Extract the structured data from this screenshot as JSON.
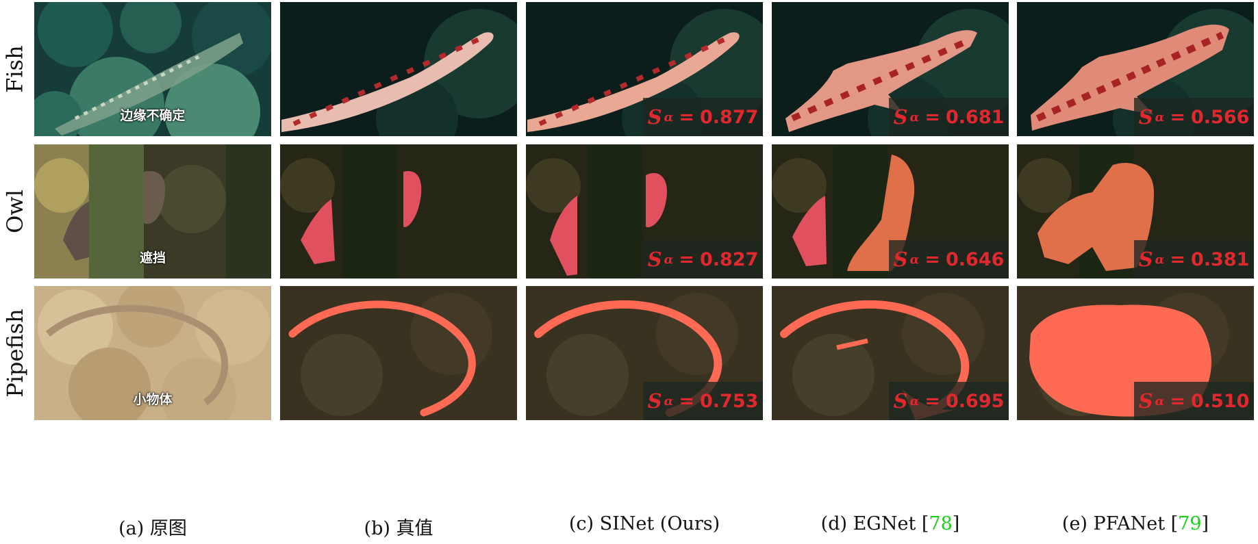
{
  "rows": [
    {
      "label": "Fish",
      "orig_caption": "边缘不确定",
      "scores": [
        "0.877",
        "0.681",
        "0.566"
      ]
    },
    {
      "label": "Owl",
      "orig_caption": "遮挡",
      "scores": [
        "0.827",
        "0.646",
        "0.381"
      ]
    },
    {
      "label": "Pipefish",
      "orig_caption": "小物体",
      "scores": [
        "0.753",
        "0.695",
        "0.510"
      ]
    }
  ],
  "score_symbol": "S",
  "score_subscript": "α",
  "score_equals": "=",
  "columns": [
    {
      "prefix": "(a) 原图",
      "ref": ""
    },
    {
      "prefix": "(b) 真值",
      "ref": ""
    },
    {
      "prefix": "(c) SINet (Ours)",
      "ref": ""
    },
    {
      "prefix": "(d) EGNet [",
      "ref": "78",
      "suffix": "]"
    },
    {
      "prefix": "(e) PFANet [",
      "ref": "79",
      "suffix": "]"
    }
  ],
  "colors": {
    "highlight": "#ff5a4e",
    "score_text": "#e0282e",
    "citation": "#18d018"
  }
}
